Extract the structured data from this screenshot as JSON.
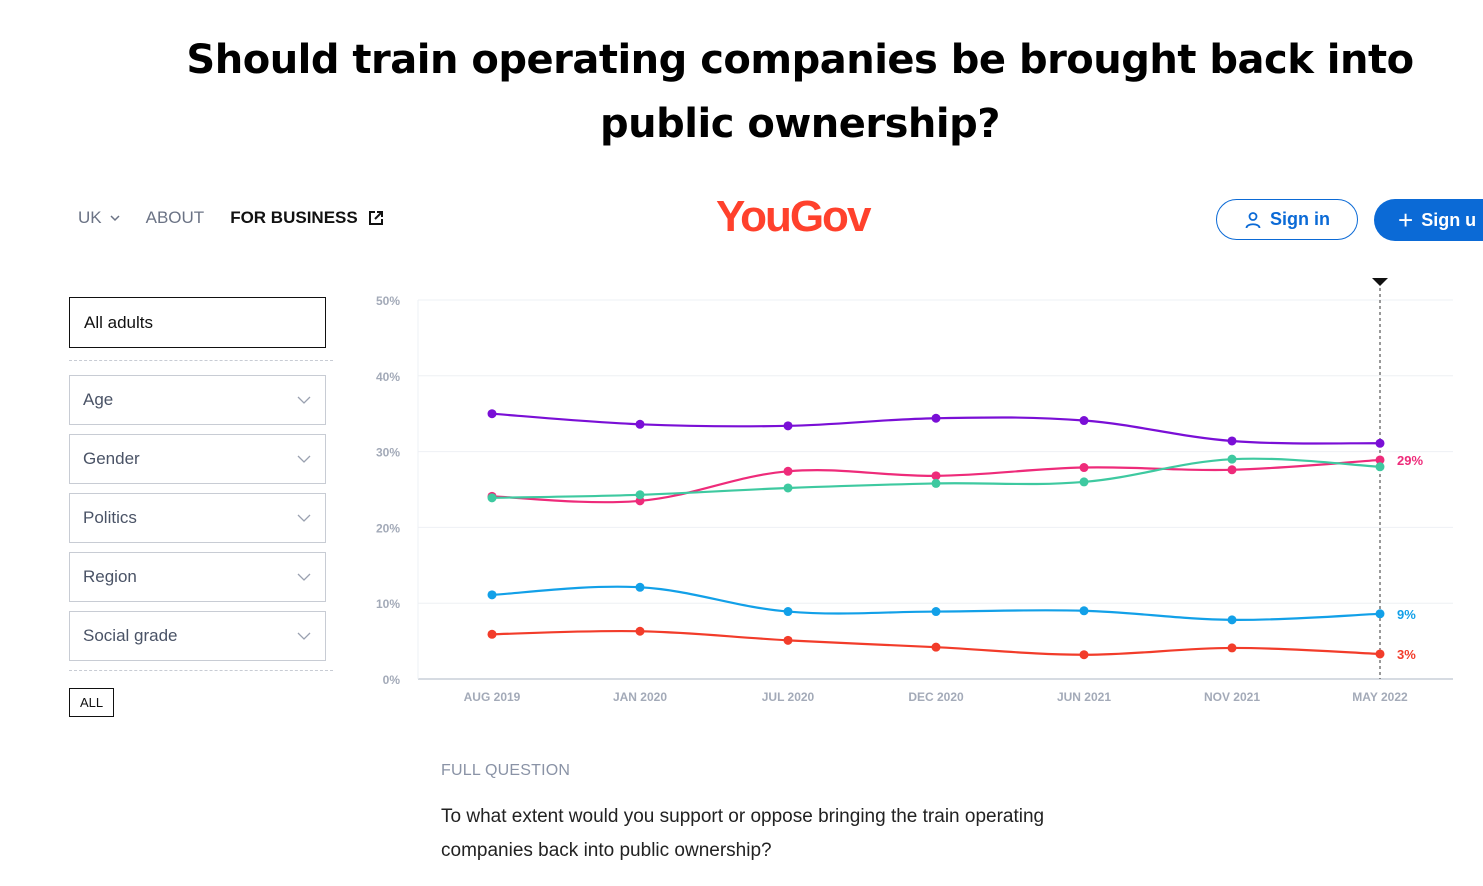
{
  "headline": "Should train operating companies be brought back into public ownership?",
  "nav": {
    "region": "UK",
    "about": "ABOUT",
    "business": "FOR BUSINESS"
  },
  "brand": {
    "logo": "YouGov",
    "color": "#ff412c"
  },
  "auth": {
    "signin": "Sign in",
    "signup": "Sign u"
  },
  "sidebar": {
    "all_adults": "All adults",
    "filters": [
      "Age",
      "Gender",
      "Politics",
      "Region",
      "Social grade"
    ],
    "all_button": "ALL"
  },
  "chart_data": {
    "type": "line",
    "categories": [
      "AUG 2019",
      "JAN 2020",
      "JUL 2020",
      "DEC 2020",
      "JUN 2021",
      "NOV 2021",
      "MAY 2022"
    ],
    "yticks": [
      "0%",
      "10%",
      "20%",
      "30%",
      "40%",
      "50%"
    ],
    "ylim": [
      0,
      50
    ],
    "series": [
      {
        "name": "purple",
        "color": "#7a0fd6",
        "values": [
          35,
          33.6,
          33.4,
          34.4,
          34.1,
          31.4,
          31.1
        ],
        "label": ""
      },
      {
        "name": "pink",
        "color": "#ee2b7a",
        "values": [
          24.1,
          23.5,
          27.4,
          26.8,
          27.9,
          27.6,
          28.9
        ],
        "label": "29%"
      },
      {
        "name": "green",
        "color": "#3ec9a0",
        "values": [
          23.9,
          24.3,
          25.2,
          25.8,
          26.0,
          29.0,
          28.0
        ],
        "label": ""
      },
      {
        "name": "blue",
        "color": "#12a0e8",
        "values": [
          11.1,
          12.1,
          8.9,
          8.9,
          9.0,
          7.8,
          8.6
        ],
        "label": "9%"
      },
      {
        "name": "red",
        "color": "#f23c2a",
        "values": [
          5.9,
          6.3,
          5.1,
          4.2,
          3.2,
          4.1,
          3.3
        ],
        "label": "3%"
      }
    ]
  },
  "full_question": {
    "label": "FULL QUESTION",
    "text": "To what extent would you support or oppose bringing the train operating companies back into public ownership?"
  }
}
